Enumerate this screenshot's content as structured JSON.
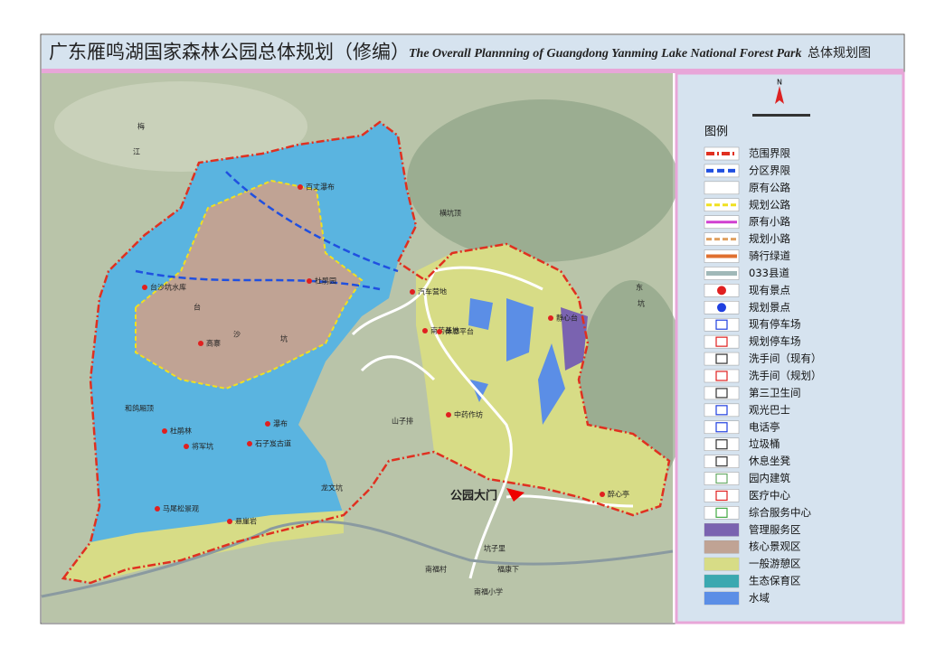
{
  "header": {
    "title_cn": "广东雁鸣湖国家森林公园总体规划（修编）",
    "title_en": "The Overall Plannning of Guangdong Yanming Lake National Forest Park",
    "map_name": "总体规划图"
  },
  "legend": {
    "north": "N",
    "title": "图例",
    "items": [
      "范围界限",
      "分区界限",
      "原有公路",
      "规划公路",
      "原有小路",
      "规划小路",
      "骑行绿道",
      "033县道",
      "现有景点",
      "规划景点",
      "现有停车场",
      "规划停车场",
      "洗手间（现有）",
      "洗手间（规划）",
      "第三卫生间",
      "观光巴士",
      "电话亭",
      "垃圾桶",
      "休息坐凳",
      "园内建筑",
      "医疗中心",
      "综合服务中心",
      "管理服务区",
      "核心景观区",
      "一般游憩区",
      "生态保育区",
      "水域"
    ]
  },
  "map_labels": [
    "公园大门",
    "百丈瀑布",
    "杜鹃园",
    "台沙坑水库",
    "高寨",
    "杜鹃林",
    "将军坑",
    "石子岌古道",
    "瀑布",
    "马尾松景观",
    "悬崖岩",
    "南福村",
    "南福小学",
    "福康下",
    "龙文坑",
    "山子排",
    "坑子里",
    "梅",
    "江",
    "东",
    "坑",
    "横坑顶",
    "汽车营地",
    "静心台",
    "中药作坊",
    "南药基地",
    "休息平台",
    "醉心亭",
    "和鸽厢顶",
    "台",
    "沙",
    "坑"
  ]
}
